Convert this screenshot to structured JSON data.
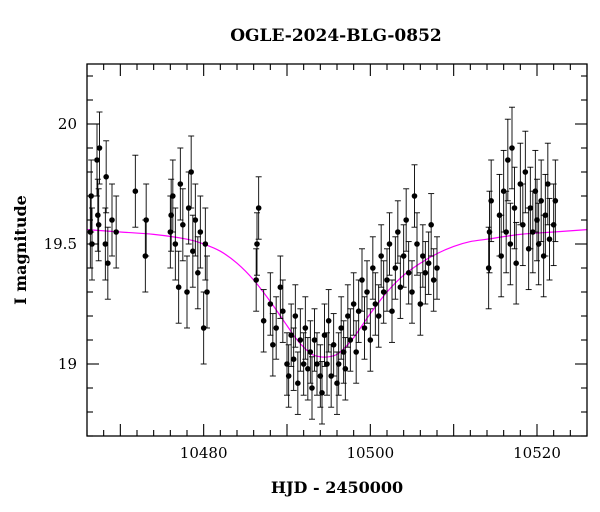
{
  "chart_data": {
    "type": "scatter",
    "title": "OGLE-2024-BLG-0852",
    "xlabel": "HJD - 2450000",
    "ylabel": "I magnitude",
    "xlim": [
      10466,
      10526
    ],
    "ylim": [
      20.25,
      18.7
    ],
    "y_inverted": true,
    "xticks": [
      10480,
      10500,
      10520
    ],
    "yticks": [
      19,
      19.5,
      20
    ],
    "colors": {
      "points": "#000000",
      "model": "#ff00ff",
      "axes": "#000000"
    },
    "model": {
      "name": "",
      "color": "#ff00ff",
      "x": [
        10466,
        10470,
        10474,
        10478,
        10480,
        10482,
        10484,
        10486,
        10488,
        10490,
        10491,
        10492,
        10493,
        10494,
        10495,
        10496,
        10497,
        10498,
        10499,
        10500,
        10502,
        10504,
        10506,
        10508,
        10510,
        10512,
        10514,
        10518,
        10522,
        10526
      ],
      "y": [
        19.56,
        19.55,
        19.54,
        19.52,
        19.5,
        19.47,
        19.42,
        19.35,
        19.26,
        19.16,
        19.11,
        19.07,
        19.04,
        19.03,
        19.03,
        19.04,
        19.07,
        19.11,
        19.16,
        19.21,
        19.3,
        19.37,
        19.42,
        19.46,
        19.49,
        19.51,
        19.52,
        19.54,
        19.55,
        19.56
      ]
    },
    "series": [
      {
        "x": [
          10466.4,
          10466.5,
          10466.6,
          10467.2,
          10467.3,
          10467.4,
          10467.5,
          10468.2,
          10468.3,
          10468.5,
          10469.0,
          10469.5,
          10471.8,
          10473.0,
          10473.1,
          10476.0,
          10476.1,
          10476.3,
          10476.6,
          10477.0,
          10477.2,
          10477.5,
          10478.0,
          10478.2,
          10478.5,
          10478.7,
          10479.0,
          10479.3,
          10479.6,
          10480.0,
          10480.2,
          10480.4
        ],
        "y": [
          19.55,
          19.7,
          19.5,
          19.85,
          19.62,
          19.58,
          19.9,
          19.5,
          19.78,
          19.42,
          19.6,
          19.55,
          19.72,
          19.45,
          19.6,
          19.55,
          19.62,
          19.7,
          19.5,
          19.32,
          19.75,
          19.58,
          19.3,
          19.65,
          19.8,
          19.47,
          19.6,
          19.38,
          19.55,
          19.15,
          19.5,
          19.3
        ],
        "yerr": [
          0.15,
          0.15,
          0.15,
          0.15,
          0.15,
          0.15,
          0.15,
          0.15,
          0.15,
          0.15,
          0.15,
          0.15,
          0.15,
          0.15,
          0.15,
          0.15,
          0.15,
          0.15,
          0.15,
          0.15,
          0.15,
          0.15,
          0.15,
          0.15,
          0.15,
          0.15,
          0.15,
          0.15,
          0.15,
          0.15,
          0.15,
          0.15
        ]
      },
      {
        "x": [
          10486.3,
          10486.4,
          10486.6,
          10487.2,
          10488.0,
          10488.3,
          10488.7,
          10489.2,
          10489.5,
          10490.0,
          10490.2,
          10490.5,
          10490.8,
          10491.0,
          10491.3,
          10491.6,
          10492.0,
          10492.2,
          10492.5,
          10492.8,
          10493.0,
          10493.3,
          10493.6,
          10494.0,
          10494.2,
          10494.5,
          10494.8,
          10495.0,
          10495.3,
          10495.6,
          10496.0,
          10496.2,
          10496.5,
          10496.8,
          10497.0,
          10497.3,
          10497.6,
          10498.0,
          10498.3,
          10498.6,
          10499.0,
          10499.3,
          10499.6,
          10500.0,
          10500.3,
          10500.6,
          10501.0,
          10501.3,
          10501.6,
          10502.0,
          10502.3,
          10502.6,
          10503.0,
          10503.3,
          10503.6,
          10504.0,
          10504.3,
          10504.6,
          10505.0,
          10505.3,
          10505.6,
          10506.0,
          10506.3,
          10506.6,
          10507.0,
          10507.3,
          10507.6,
          10508.0
        ],
        "y": [
          19.35,
          19.5,
          19.65,
          19.18,
          19.25,
          19.08,
          19.15,
          19.32,
          19.22,
          19.0,
          18.95,
          19.12,
          19.02,
          19.2,
          18.92,
          19.1,
          19.0,
          19.15,
          18.98,
          19.05,
          18.9,
          19.1,
          19.0,
          18.95,
          18.88,
          19.12,
          19.0,
          19.18,
          18.95,
          19.08,
          18.92,
          19.0,
          19.15,
          19.05,
          18.98,
          19.2,
          19.1,
          19.25,
          19.05,
          19.22,
          19.35,
          19.15,
          19.3,
          19.1,
          19.4,
          19.25,
          19.2,
          19.45,
          19.3,
          19.35,
          19.5,
          19.22,
          19.4,
          19.55,
          19.32,
          19.45,
          19.6,
          19.38,
          19.3,
          19.7,
          19.5,
          19.25,
          19.45,
          19.38,
          19.42,
          19.58,
          19.35,
          19.4
        ],
        "yerr": [
          0.13,
          0.13,
          0.13,
          0.13,
          0.13,
          0.13,
          0.13,
          0.13,
          0.13,
          0.13,
          0.13,
          0.13,
          0.13,
          0.13,
          0.13,
          0.13,
          0.13,
          0.13,
          0.13,
          0.13,
          0.13,
          0.13,
          0.13,
          0.13,
          0.13,
          0.13,
          0.13,
          0.13,
          0.13,
          0.13,
          0.13,
          0.13,
          0.13,
          0.13,
          0.13,
          0.13,
          0.13,
          0.13,
          0.13,
          0.13,
          0.13,
          0.13,
          0.13,
          0.13,
          0.13,
          0.13,
          0.13,
          0.13,
          0.13,
          0.13,
          0.13,
          0.13,
          0.13,
          0.13,
          0.13,
          0.13,
          0.13,
          0.13,
          0.13,
          0.13,
          0.13,
          0.13,
          0.13,
          0.13,
          0.13,
          0.13,
          0.13,
          0.13
        ]
      },
      {
        "x": [
          10514.2,
          10514.3,
          10514.5,
          10515.5,
          10515.7,
          10516.0,
          10516.3,
          10516.5,
          10516.8,
          10517.0,
          10517.3,
          10517.5,
          10518.0,
          10518.3,
          10518.6,
          10519.0,
          10519.2,
          10519.5,
          10519.8,
          10520.0,
          10520.2,
          10520.5,
          10520.8,
          10521.0,
          10521.3,
          10521.5,
          10522.0,
          10522.2
        ],
        "y": [
          19.4,
          19.55,
          19.68,
          19.62,
          19.45,
          19.72,
          19.55,
          19.85,
          19.5,
          19.9,
          19.65,
          19.42,
          19.75,
          19.58,
          19.8,
          19.48,
          19.65,
          19.55,
          19.72,
          19.6,
          19.5,
          19.68,
          19.45,
          19.62,
          19.75,
          19.52,
          19.58,
          19.68
        ],
        "yerr": [
          0.17,
          0.17,
          0.17,
          0.17,
          0.17,
          0.17,
          0.17,
          0.17,
          0.17,
          0.17,
          0.17,
          0.17,
          0.17,
          0.17,
          0.17,
          0.17,
          0.17,
          0.17,
          0.17,
          0.17,
          0.17,
          0.17,
          0.17,
          0.17,
          0.17,
          0.17,
          0.17,
          0.17
        ]
      }
    ]
  }
}
